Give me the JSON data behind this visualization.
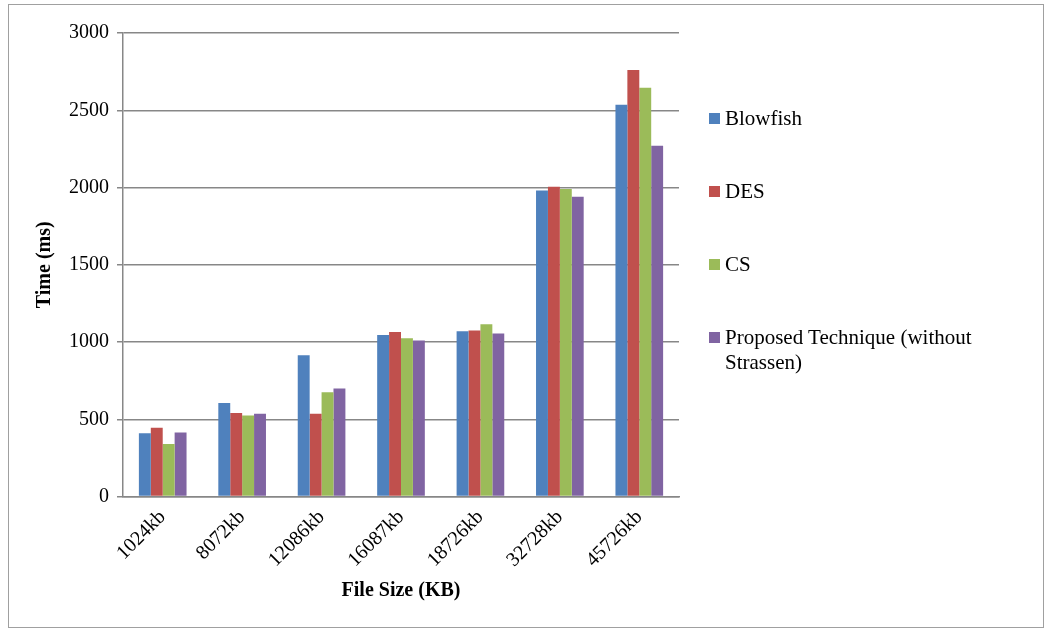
{
  "chart_data": {
    "type": "bar",
    "xlabel": "File Size (KB)",
    "ylabel": "Time (ms)",
    "categories": [
      "1024kb",
      "8072kb",
      "12086kb",
      "16087kb",
      "18726kb",
      "32728kb",
      "45726kb"
    ],
    "series": [
      {
        "name": "Blowfish",
        "color": "#4f81bd",
        "values": [
          410,
          605,
          915,
          1045,
          1070,
          1980,
          2535
        ]
      },
      {
        "name": "DES",
        "color": "#c0504d",
        "values": [
          445,
          540,
          535,
          1065,
          1075,
          2005,
          2760
        ]
      },
      {
        "name": "CS",
        "color": "#9bbb59",
        "values": [
          340,
          525,
          675,
          1025,
          1115,
          1990,
          2645
        ]
      },
      {
        "name": "Proposed Technique (without Strassen)",
        "color": "#8064a2",
        "values": [
          415,
          535,
          700,
          1010,
          1055,
          1940,
          2270
        ]
      }
    ],
    "ylim": [
      0,
      3000
    ],
    "yticks": [
      0,
      500,
      1000,
      1500,
      2000,
      2500,
      3000
    ],
    "grid": "y",
    "legend": "right"
  }
}
